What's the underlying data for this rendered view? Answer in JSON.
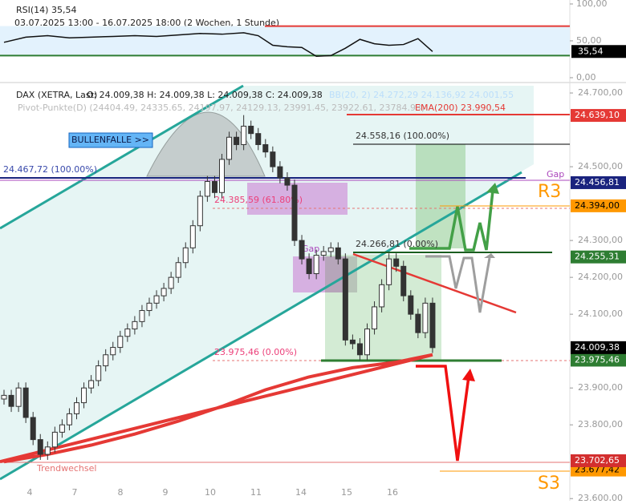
{
  "chart_data": {
    "type": "candlestick",
    "rsi_header": {
      "name": "RSI(14)",
      "value": "35,54"
    },
    "date_range": "03.07.2025 13:00 - 16.07.2025 18:00  (2 Wochen, 1 Stunde)",
    "header": {
      "instrument": "DAX (XETRA, Last)",
      "ohlc": "O: 24.009,38  H: 24.009,38  L: 24.009,38  C: 24.009,38",
      "bb": "BB(20, 2)  24.272,29  24.136,92  24.001,55",
      "pivots": "Pivot-Punkte(D)  (24404.49, 24335.65, 24197.97, 24129.13, 23991.45, 23922.61, 23784.93)",
      "ema": "EMA(200)  23.990,54"
    },
    "annotations": {
      "bullenfalle": "BULLENFALLE >>",
      "fib1_top": "24.467,72 (100.00%)",
      "fib1_mid": "24.385,59 (61.80%)",
      "fib1_low": "23.975,46 (0.00%)",
      "fib2_top": "24.558,16 (100.00%)",
      "fib2_low": "24.266,81 (0.00%)",
      "gap1": "Gap",
      "gap2": "Gap",
      "r3": "R3",
      "s3": "S3",
      "trend": "Trendwechsel"
    },
    "x_labels": [
      "4",
      "7",
      "8",
      "9",
      "10",
      "11",
      "14",
      "15",
      "16"
    ],
    "ylim": [
      23594,
      24724
    ],
    "yticks": [
      {
        "value": 24700,
        "label": "24.700,00"
      },
      {
        "value": 24500,
        "label": "24.500,00"
      },
      {
        "value": 24300,
        "label": "24.300,00"
      },
      {
        "value": 24200,
        "label": "24.200,00"
      },
      {
        "value": 24100,
        "label": "24.100,00"
      },
      {
        "value": 23900,
        "label": "23.900,00"
      },
      {
        "value": 23800,
        "label": "23.800,00"
      },
      {
        "value": 23600,
        "label": "23.600,00"
      }
    ],
    "grid": false,
    "candles": [
      [
        23870,
        23895,
        23855,
        23880
      ],
      [
        23880,
        23895,
        23835,
        23850
      ],
      [
        23850,
        23915,
        23835,
        23900
      ],
      [
        23900,
        23915,
        23805,
        23820
      ],
      [
        23820,
        23835,
        23745,
        23760
      ],
      [
        23760,
        23775,
        23705,
        23720
      ],
      [
        23720,
        23755,
        23705,
        23740
      ],
      [
        23740,
        23795,
        23725,
        23780
      ],
      [
        23780,
        23815,
        23765,
        23800
      ],
      [
        23800,
        23845,
        23785,
        23830
      ],
      [
        23830,
        23875,
        23815,
        23860
      ],
      [
        23860,
        23915,
        23845,
        23900
      ],
      [
        23900,
        23935,
        23885,
        23920
      ],
      [
        23920,
        23975,
        23905,
        23960
      ],
      [
        23960,
        24005,
        23945,
        23990
      ],
      [
        23990,
        24025,
        23975,
        24010
      ],
      [
        24010,
        24055,
        23995,
        24040
      ],
      [
        24040,
        24075,
        24025,
        24060
      ],
      [
        24060,
        24095,
        24045,
        24080
      ],
      [
        24080,
        24125,
        24065,
        24110
      ],
      [
        24110,
        24145,
        24095,
        24130
      ],
      [
        24130,
        24165,
        24115,
        24150
      ],
      [
        24150,
        24185,
        24135,
        24170
      ],
      [
        24170,
        24215,
        24155,
        24200
      ],
      [
        24200,
        24255,
        24185,
        24240
      ],
      [
        24240,
        24295,
        24225,
        24280
      ],
      [
        24280,
        24355,
        24265,
        24340
      ],
      [
        24340,
        24435,
        24325,
        24420
      ],
      [
        24420,
        24475,
        24405,
        24460
      ],
      [
        24460,
        24475,
        24415,
        24430
      ],
      [
        24430,
        24535,
        24415,
        24520
      ],
      [
        24520,
        24595,
        24505,
        24580
      ],
      [
        24580,
        24595,
        24545,
        24560
      ],
      [
        24560,
        24640,
        24545,
        24610
      ],
      [
        24610,
        24625,
        24575,
        24590
      ],
      [
        24590,
        24605,
        24545,
        24560
      ],
      [
        24560,
        24575,
        24525,
        24540
      ],
      [
        24540,
        24555,
        24485,
        24500
      ],
      [
        24500,
        24515,
        24455,
        24470
      ],
      [
        24470,
        24485,
        24435,
        24450
      ],
      [
        24450,
        24465,
        24285,
        24300
      ],
      [
        24300,
        24315,
        24235,
        24250
      ],
      [
        24250,
        24265,
        24195,
        24210
      ],
      [
        24210,
        24275,
        24195,
        24260
      ],
      [
        24260,
        24285,
        24245,
        24270
      ],
      [
        24270,
        24295,
        24255,
        24280
      ],
      [
        24280,
        24295,
        24235,
        24250
      ],
      [
        24250,
        24265,
        24015,
        24030
      ],
      [
        24030,
        24045,
        24005,
        24020
      ],
      [
        24020,
        24035,
        23975,
        23990
      ],
      [
        23990,
        24075,
        23975,
        24060
      ],
      [
        24060,
        24135,
        24045,
        24120
      ],
      [
        24120,
        24195,
        24105,
        24180
      ],
      [
        24180,
        24265,
        24165,
        24250
      ],
      [
        24250,
        24265,
        24215,
        24230
      ],
      [
        24230,
        24245,
        24135,
        24150
      ],
      [
        24150,
        24165,
        24085,
        24100
      ],
      [
        24100,
        24115,
        24035,
        24050
      ],
      [
        24050,
        24145,
        24035,
        24130
      ],
      [
        24130,
        24145,
        23995,
        24009.38
      ]
    ],
    "up_color": "#ffffff",
    "down_color": "#333333",
    "ema_line": {
      "color": "#e53935",
      "x": [
        0,
        6,
        12,
        18,
        24,
        30,
        36,
        42,
        48,
        54,
        59
      ],
      "values": [
        23700,
        23720,
        23745,
        23775,
        23810,
        23850,
        23895,
        23930,
        23955,
        23970,
        23990
      ]
    },
    "price_levels": [
      {
        "value": 24639.1,
        "label": "24.639,10",
        "color": "#e53935",
        "text_color": "#ffffff"
      },
      {
        "value": 24456.81,
        "label": "24.456,81",
        "color": "#1a237e",
        "text_color": "#ffffff"
      },
      {
        "value": 24394,
        "label": "24.394,00",
        "color": "#ff9800",
        "text_color": "#000000"
      },
      {
        "value": 24255.31,
        "label": "24.255,31",
        "color": "#2e7d32",
        "text_color": "#ffffff"
      },
      {
        "value": 24009.38,
        "label": "24.009,38",
        "color": "#000000",
        "text_color": "#ffffff"
      },
      {
        "value": 23975.46,
        "label": "23.975,46",
        "color": "#2e7d32",
        "text_color": "#ffffff"
      },
      {
        "value": 23702.65,
        "label": "23.702,65",
        "color": "#d32f2f",
        "text_color": "#ffffff"
      },
      {
        "value": 23677.42,
        "label": "23.677,42",
        "color": "#ff9800",
        "text_color": "#000000"
      }
    ],
    "rsi": {
      "ylim": [
        -3.3,
        105.4
      ],
      "yticks": [
        {
          "value": 100,
          "label": "100,00"
        },
        {
          "value": 50,
          "label": "50,00"
        },
        {
          "value": 0,
          "label": "0,00"
        }
      ],
      "upper": 70,
      "lower": 30,
      "upper_color": "#e53935",
      "lower_color": "#2e7d32",
      "x": [
        0,
        3,
        6,
        9,
        12,
        15,
        18,
        21,
        24,
        27,
        30,
        33,
        35,
        37,
        39,
        41,
        43,
        45,
        47,
        49,
        51,
        53,
        55,
        57,
        59
      ],
      "values": [
        48,
        55,
        57,
        54,
        55,
        56,
        57,
        56,
        58,
        60,
        59,
        61,
        57,
        44,
        42,
        41,
        29,
        30,
        40,
        52,
        46,
        44,
        45,
        53,
        35.54
      ],
      "last": {
        "value": 35.54,
        "label": "35,54"
      }
    }
  }
}
